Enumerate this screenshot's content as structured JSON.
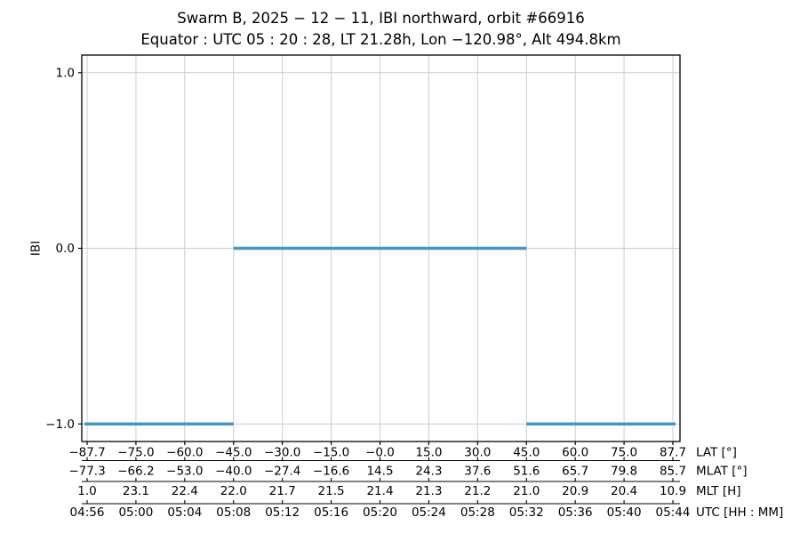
{
  "figure": {
    "background": "#ffffff"
  },
  "chart_data": {
    "type": "line",
    "title": "Swarm B,  2025 − 12 − 11,  IBI northward,  orbit #66916",
    "subtitle": "Equator :  UTC 05 : 20 : 28,  LT 21.28h,  Lon  −120.98°,  Alt 494.8km",
    "ylabel": "IBI",
    "ylim": [
      -1.1,
      1.1
    ],
    "grid": true,
    "legend_position": "none",
    "yticks": [
      {
        "value": 1.0,
        "label": "1.0"
      },
      {
        "value": 0.0,
        "label": "0.0"
      },
      {
        "value": -1.0,
        "label": "−1.0"
      }
    ],
    "series": [
      {
        "name": "IBI northward",
        "color": "#4994c7",
        "line_width": 3.5,
        "steps": [
          {
            "value": -1,
            "from_tick_index": 0,
            "to_tick_index": 3,
            "utc_from": "04:56",
            "utc_to": "05:08"
          },
          {
            "value": 0,
            "from_tick_index": 3,
            "to_tick_index": 9,
            "utc_from": "05:08",
            "utc_to": "05:32"
          },
          {
            "value": -1,
            "from_tick_index": 9,
            "to_tick_index": 12,
            "utc_from": "05:32",
            "utc_to": "05:44"
          }
        ]
      }
    ],
    "x_rows": [
      {
        "label": "LAT [°]",
        "values": [
          "−87.7",
          "−75.0",
          "−60.0",
          "−45.0",
          "−30.0",
          "−15.0",
          "−0.0",
          "15.0",
          "30.0",
          "45.0",
          "60.0",
          "75.0",
          "87.7"
        ]
      },
      {
        "label": "MLAT [°]",
        "values": [
          "−77.3",
          "−66.2",
          "−53.0",
          "−40.0",
          "−27.4",
          "−16.6",
          "14.5",
          "24.3",
          "37.6",
          "51.6",
          "65.7",
          "79.8",
          "85.7"
        ]
      },
      {
        "label": "MLT [H]",
        "values": [
          "1.0",
          "23.1",
          "22.4",
          "22.0",
          "21.7",
          "21.5",
          "21.4",
          "21.3",
          "21.2",
          "21.0",
          "20.9",
          "20.4",
          "10.9"
        ]
      },
      {
        "label": "UTC [HH : MM]",
        "values": [
          "04:56",
          "05:00",
          "05:04",
          "05:08",
          "05:12",
          "05:16",
          "05:20",
          "05:24",
          "05:28",
          "05:32",
          "05:36",
          "05:40",
          "05:44"
        ]
      }
    ],
    "colors": {
      "grid": "#cccccc",
      "spine": "#000000",
      "text": "#000000"
    }
  }
}
